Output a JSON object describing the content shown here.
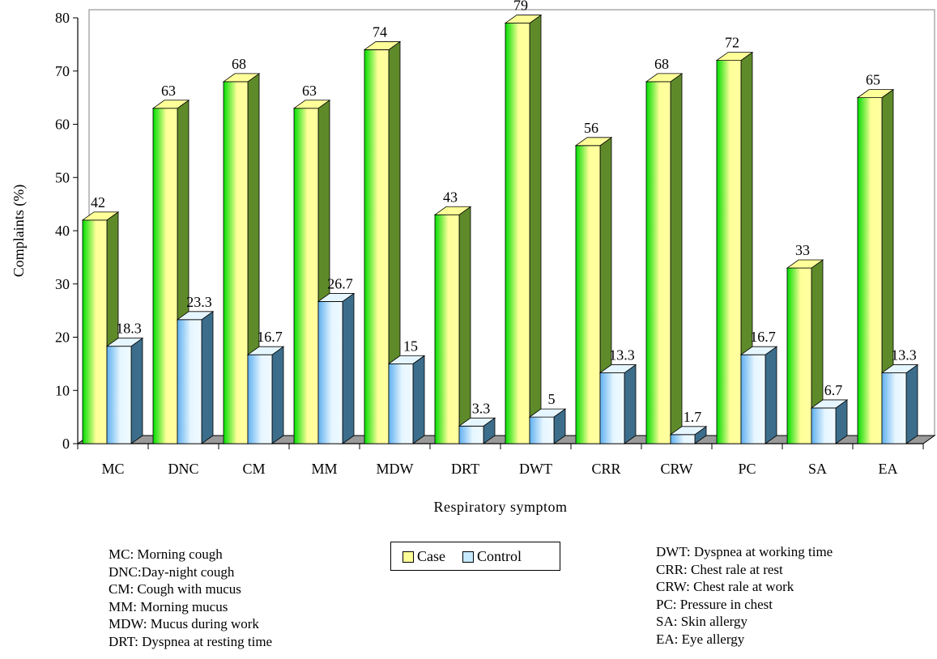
{
  "chart_data": {
    "type": "bar",
    "categories": [
      "MC",
      "DNC",
      "CM",
      "MM",
      "MDW",
      "DRT",
      "DWT",
      "CRR",
      "CRW",
      "PC",
      "SA",
      "EA"
    ],
    "series": [
      {
        "name": "Case",
        "values": [
          42,
          63,
          68,
          63,
          74,
          43,
          79,
          56,
          68,
          72,
          33,
          65
        ]
      },
      {
        "name": "Control",
        "values": [
          18.3,
          23.3,
          16.7,
          26.7,
          15,
          3.3,
          5,
          13.3,
          1.7,
          16.7,
          6.7,
          13.3
        ]
      }
    ],
    "data_labels": [
      [
        "42",
        "63",
        "68",
        "63",
        "74",
        "43",
        "79",
        "56",
        "68",
        "72",
        "33",
        "65"
      ],
      [
        "18.3",
        "23.3",
        "16.7",
        "26.7",
        "15",
        "3.3",
        "5",
        "13.3",
        "1.7",
        "16.7",
        "6.7",
        "13.3"
      ]
    ],
    "xlabel": "Respiratory symptom",
    "ylabel": "Complaints (%)",
    "ylim": [
      0,
      80
    ],
    "yticks": [
      "0",
      "10",
      "20",
      "30",
      "40",
      "50",
      "60",
      "70",
      "80"
    ],
    "grid": false,
    "style": "3d-bars",
    "colors": {
      "case_light": "#ffff99",
      "case_dark": "#00dd00",
      "case_side": "#5f8a2a",
      "control_light": "#e6f6ff",
      "control_dark": "#5fb0f0",
      "control_side": "#3c6e8c",
      "floor": "#9a9a9a"
    },
    "legend_position": "bottom-center"
  },
  "legend": {
    "case_label": "Case",
    "control_label": "Control"
  },
  "abbreviations_left": [
    "MC: Morning cough",
    "DNC:Day-night cough",
    "CM: Cough with mucus",
    "MM: Morning mucus",
    "MDW: Mucus during work",
    "DRT: Dyspnea at resting time"
  ],
  "abbreviations_right": [
    "DWT: Dyspnea at working time",
    "CRR:  Chest rale at rest",
    "CRW: Chest rale at work",
    "PC: Pressure in chest",
    "SA: Skin allergy",
    "EA: Eye allergy"
  ]
}
